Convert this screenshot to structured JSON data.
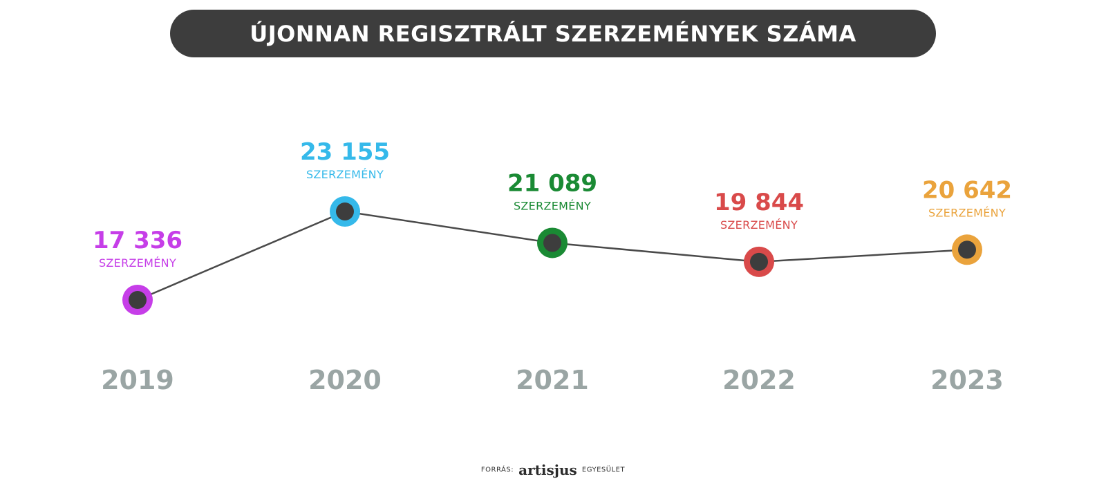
{
  "title": "ÚJONNAN REGISZTRÁLT SZERZEMÉNYEK SZÁMA",
  "source": {
    "prefix": "FORRÁS:",
    "brand": "artisjus",
    "suffix": "EGYESÜLET"
  },
  "colors": {
    "banner": "#3d3d3d",
    "line": "#4a4a4a",
    "marker_center": "#3d3d3d",
    "year_label": "#9aa5a4"
  },
  "chart_data": {
    "type": "line",
    "title": "ÚJONNAN REGISZTRÁLT SZERZEMÉNYEK SZÁMA",
    "xlabel": "",
    "ylabel": "",
    "grid": false,
    "categories": [
      "2019",
      "2020",
      "2021",
      "2022",
      "2023"
    ],
    "values": [
      17336,
      23155,
      21089,
      19844,
      20642
    ],
    "data_labels": [
      "17 336",
      "23 155",
      "21 089",
      "19 844",
      "20 642"
    ],
    "unit_label": "SZERZEMÉNY",
    "point_colors": [
      "#c63ee8",
      "#35b9ea",
      "#1a8a34",
      "#d94a4a",
      "#eaa33c"
    ]
  }
}
